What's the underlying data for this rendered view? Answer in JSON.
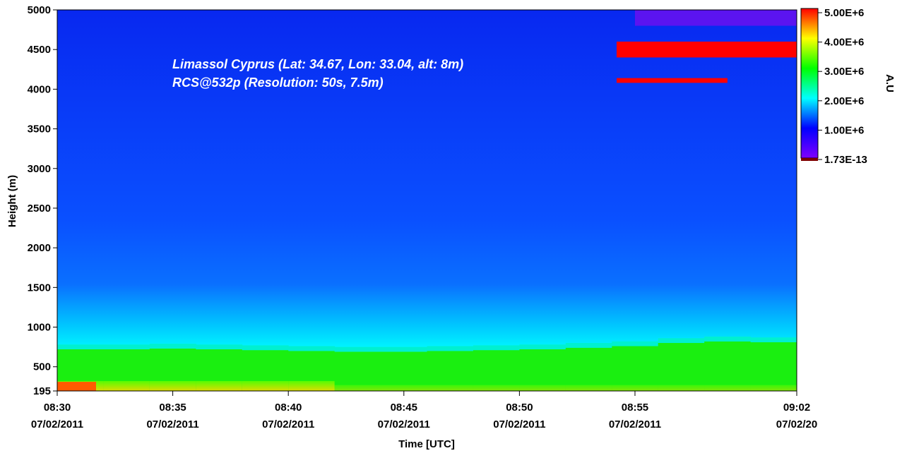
{
  "chart_data": {
    "type": "heatmap",
    "title": "",
    "xlabel": "Time [UTC]",
    "ylabel": "Height (m)",
    "x_range": [
      "08:30",
      "09:02"
    ],
    "ylim": [
      195,
      5000
    ],
    "x_ticks": [
      {
        "time": "08:30",
        "date": "07/02/2011",
        "minute": 0
      },
      {
        "time": "08:35",
        "date": "07/02/2011",
        "minute": 5
      },
      {
        "time": "08:40",
        "date": "07/02/2011",
        "minute": 10
      },
      {
        "time": "08:45",
        "date": "07/02/2011",
        "minute": 15
      },
      {
        "time": "08:50",
        "date": "07/02/2011",
        "minute": 20
      },
      {
        "time": "08:55",
        "date": "07/02/2011",
        "minute": 25
      },
      {
        "time": "09:02",
        "date": "07/02/20",
        "minute": 32
      }
    ],
    "y_ticks": [
      195,
      500,
      1000,
      1500,
      2000,
      2500,
      3000,
      3500,
      4000,
      4500,
      5000
    ],
    "annotations": [
      "Limassol Cyprus (Lat: 34.67, Lon: 33.04, alt: 8m)",
      "RCS@532p (Resolution: 50s, 7.5m)"
    ],
    "colorbar": {
      "title": "A.U",
      "min": 1.73e-13,
      "max": 5000000,
      "tick_labels": [
        "5.00E+6",
        "4.00E+6",
        "3.00E+6",
        "2.00E+6",
        "1.00E+6",
        "1.73E-13"
      ],
      "tick_values": [
        5000000,
        4000000,
        3000000,
        2000000,
        1000000,
        1.73e-13
      ],
      "colors": [
        "#6a00ff",
        "#0000ff",
        "#00ffff",
        "#00ff00",
        "#ffff00",
        "#ff0000"
      ]
    },
    "features": {
      "boundary_layer_top_m": [
        720,
        720,
        730,
        720,
        710,
        700,
        690,
        690,
        700,
        710,
        720,
        740,
        760,
        800,
        820,
        810
      ],
      "cloud_layer_m": [
        4400,
        4600
      ],
      "cloud_start_minute": 25
    }
  }
}
